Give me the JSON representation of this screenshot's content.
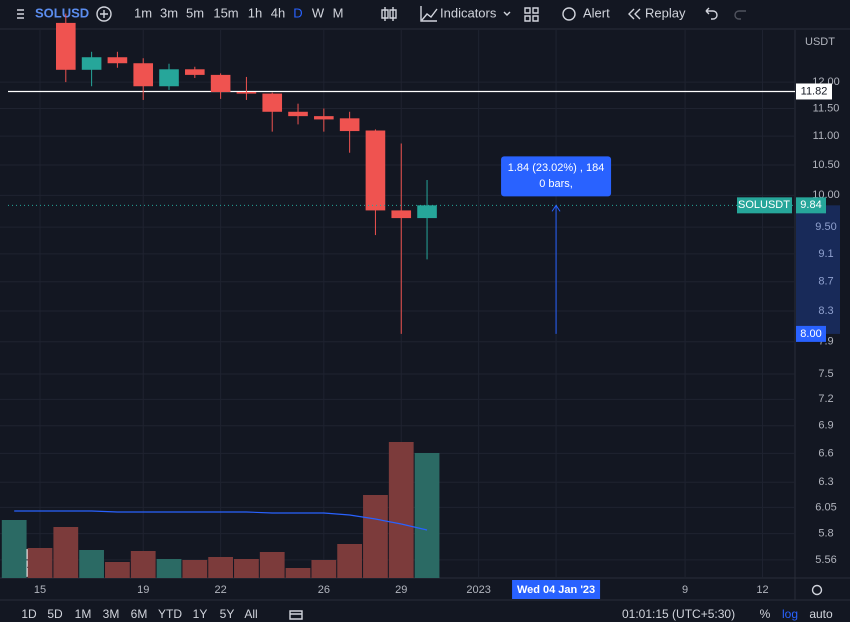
{
  "toolbar": {
    "symbol": "SOLUSD",
    "intervals": [
      "1m",
      "3m",
      "5m",
      "15m",
      "1h",
      "4h",
      "D",
      "W",
      "M"
    ],
    "active_interval": "D",
    "indicators": "Indicators",
    "alert": "Alert",
    "replay": "Replay"
  },
  "chart_data": {
    "type": "candlestick",
    "x": [
      14,
      15,
      16,
      17,
      18,
      19,
      20,
      21,
      22,
      23,
      24,
      25,
      26,
      27,
      28,
      29,
      30
    ],
    "open": [
      null,
      null,
      13.2,
      12.24,
      12.49,
      12.37,
      11.92,
      12.25,
      12.14,
      11.81,
      11.78,
      11.44,
      11.36,
      11.32,
      11.1,
      9.76,
      9.64
    ],
    "high": [
      null,
      null,
      13.4,
      12.6,
      12.6,
      12.47,
      12.36,
      12.3,
      12.17,
      12.1,
      11.8,
      11.59,
      11.5,
      11.44,
      11.12,
      10.87,
      10.25
    ],
    "low": [
      null,
      null,
      12.0,
      11.92,
      12.28,
      11.66,
      11.85,
      12.08,
      11.68,
      11.66,
      11.08,
      11.21,
      11.08,
      10.71,
      9.38,
      8.0,
      9.02
    ],
    "close": [
      null,
      null,
      12.24,
      12.49,
      12.37,
      11.92,
      12.25,
      12.14,
      11.81,
      11.78,
      11.44,
      11.36,
      11.3,
      11.09,
      9.76,
      9.64,
      9.84
    ],
    "colors": {
      "up": "#26a69a",
      "down": "#ef5350"
    },
    "volume": {
      "values": [
        58,
        30,
        51,
        28,
        16,
        27,
        19,
        18,
        21,
        19,
        26,
        10,
        18,
        34,
        83,
        136,
        125
      ],
      "colors": [
        "#2b6a64",
        "#7c3b3b",
        "#7c3b3b",
        "#2b6a64",
        "#7c3b3b",
        "#7c3b3b",
        "#2b6a64",
        "#7c3b3b",
        "#7c3b3b",
        "#7c3b3b",
        "#7c3b3b",
        "#7c3b3b",
        "#7c3b3b",
        "#7c3b3b",
        "#7c3b3b",
        "#7c3b3b",
        "#2b6a64"
      ],
      "vlim": [
        0,
        140
      ]
    },
    "volume_ma": {
      "color": "#2962ff",
      "values": [
        67,
        67,
        67,
        67,
        66,
        66,
        66,
        66,
        66,
        66,
        65,
        65,
        65,
        63,
        59,
        54,
        48
      ]
    },
    "ylim": [
      5.4,
      13.05
    ],
    "log_scale": true,
    "y_unit": "USDT",
    "yticks": [
      {
        "value": 12,
        "label": "12.00"
      },
      {
        "value": 11.5,
        "label": "11.50"
      },
      {
        "value": 11,
        "label": "11.00"
      },
      {
        "value": 10.5,
        "label": "10.50"
      },
      {
        "value": 10,
        "label": "10.00"
      },
      {
        "value": 9.5,
        "label": "9.50"
      },
      9.1,
      8.7,
      8.3,
      7.9,
      7.5,
      7.2,
      6.9,
      6.6,
      6.3,
      6.05,
      5.8,
      5.56
    ],
    "xlim": [
      13.76,
      44.26
    ],
    "xticks": [
      15,
      19,
      22,
      26,
      29,
      {
        "value": 32,
        "label": "2023"
      },
      {
        "value": 35,
        "label": "Wed 04 Jan '23"
      },
      {
        "value": 40,
        "label": "9"
      },
      {
        "value": 43,
        "label": "12"
      }
    ],
    "grid": true,
    "hline": {
      "value": 11.82,
      "color": "#ffffff"
    },
    "last_price": {
      "name": "SOLUSDT",
      "value": 9.84
    },
    "measure": {
      "from": {
        "value": 8,
        "label": "8.00"
      },
      "to": 9.84,
      "x": 35,
      "text": "1.84 (23.02%) , 184",
      "bars": "0 bars,",
      "color": "#2962ff"
    }
  },
  "bottom_bar": {
    "ranges": [
      "1D",
      "5D",
      "1M",
      "3M",
      "6M",
      "YTD",
      "1Y",
      "5Y",
      "All"
    ],
    "clock": "01:01:15 (UTC+5:30)",
    "options": [
      "%",
      "log",
      "auto"
    ]
  }
}
